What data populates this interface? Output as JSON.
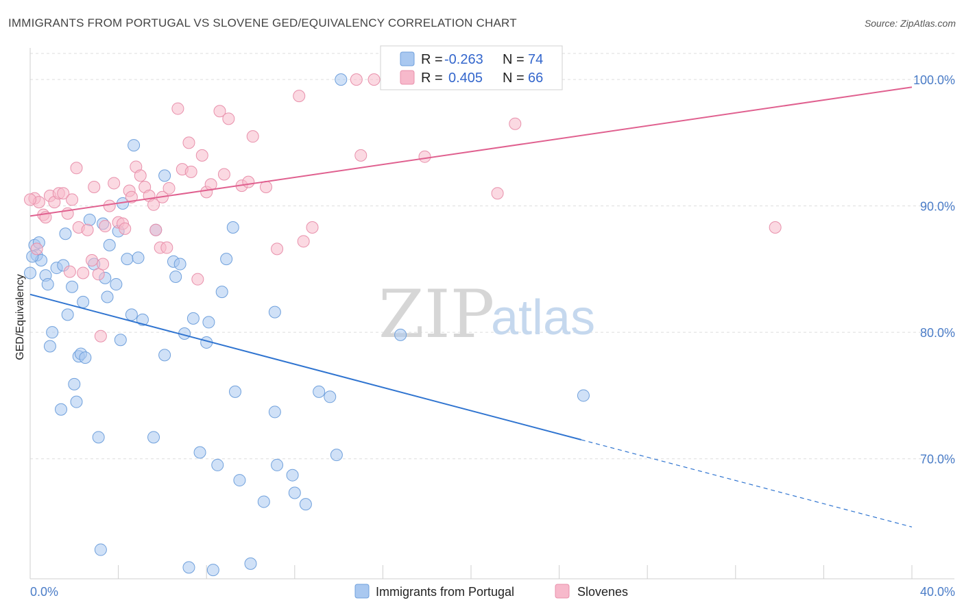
{
  "title": "IMMIGRANTS FROM PORTUGAL VS SLOVENE GED/EQUIVALENCY CORRELATION CHART",
  "source": "Source: ZipAtlas.com",
  "watermark": {
    "zip": "ZIP",
    "atlas": "atlas"
  },
  "colors": {
    "blue_fill": "#a9c8f0",
    "blue_stroke": "#6fa0dc",
    "blue_line": "#2f74d0",
    "pink_fill": "#f7b9cb",
    "pink_stroke": "#e890ab",
    "pink_line": "#e0608f",
    "tick_text": "#4a7cc7",
    "grid": "#dddddd"
  },
  "legend": {
    "r_label": "R =",
    "n_label": "N =",
    "rows": [
      {
        "r": "-0.263",
        "n": "74"
      },
      {
        "r": "0.405",
        "n": "66"
      }
    ]
  },
  "chart_data": {
    "type": "scatter",
    "title": "IMMIGRANTS FROM PORTUGAL VS SLOVENE GED/EQUIVALENCY CORRELATION CHART",
    "xlabel": "",
    "ylabel": "GED/Equivalency",
    "xlim": [
      0,
      40
    ],
    "ylim": [
      60.5,
      102.5
    ],
    "x_ticks": [
      0,
      40
    ],
    "x_tick_labels": [
      "0.0%",
      "40.0%"
    ],
    "y_ticks": [
      70,
      80,
      90,
      100
    ],
    "y_tick_labels": [
      "70.0%",
      "80.0%",
      "90.0%",
      "100.0%"
    ],
    "grid": true,
    "legend_position": "top-center",
    "series": [
      {
        "name": "Immigrants from Portugal",
        "color": "#a9c8f0",
        "points": [
          [
            0.0,
            84.7
          ],
          [
            0.2,
            86.9
          ],
          [
            0.3,
            86.1
          ],
          [
            0.4,
            87.1
          ],
          [
            0.5,
            85.7
          ],
          [
            0.7,
            84.5
          ],
          [
            0.8,
            83.8
          ],
          [
            0.9,
            78.9
          ],
          [
            1.0,
            80.0
          ],
          [
            1.2,
            85.1
          ],
          [
            1.4,
            73.9
          ],
          [
            1.5,
            85.3
          ],
          [
            1.6,
            87.8
          ],
          [
            1.7,
            81.4
          ],
          [
            1.9,
            83.6
          ],
          [
            2.0,
            75.9
          ],
          [
            2.1,
            74.5
          ],
          [
            2.2,
            78.1
          ],
          [
            2.3,
            78.3
          ],
          [
            2.4,
            82.4
          ],
          [
            2.5,
            78.0
          ],
          [
            2.7,
            88.9
          ],
          [
            2.9,
            85.4
          ],
          [
            3.1,
            71.7
          ],
          [
            3.2,
            62.8
          ],
          [
            3.3,
            88.6
          ],
          [
            3.4,
            84.3
          ],
          [
            3.5,
            82.8
          ],
          [
            3.6,
            86.9
          ],
          [
            3.9,
            83.8
          ],
          [
            4.0,
            88.0
          ],
          [
            4.1,
            79.4
          ],
          [
            4.2,
            90.2
          ],
          [
            4.4,
            85.8
          ],
          [
            4.6,
            81.4
          ],
          [
            4.7,
            94.8
          ],
          [
            4.9,
            85.9
          ],
          [
            5.1,
            81.0
          ],
          [
            5.6,
            71.7
          ],
          [
            5.7,
            88.1
          ],
          [
            6.1,
            78.2
          ],
          [
            6.1,
            92.4
          ],
          [
            6.5,
            85.6
          ],
          [
            6.6,
            84.4
          ],
          [
            6.8,
            85.4
          ],
          [
            7.0,
            79.9
          ],
          [
            7.2,
            61.4
          ],
          [
            7.4,
            81.1
          ],
          [
            7.7,
            70.5
          ],
          [
            8.0,
            79.2
          ],
          [
            8.1,
            80.8
          ],
          [
            8.3,
            61.2
          ],
          [
            8.5,
            69.5
          ],
          [
            8.7,
            83.2
          ],
          [
            8.9,
            85.8
          ],
          [
            9.2,
            88.3
          ],
          [
            9.3,
            75.3
          ],
          [
            9.5,
            68.3
          ],
          [
            10.0,
            61.7
          ],
          [
            10.6,
            66.6
          ],
          [
            11.1,
            73.7
          ],
          [
            11.1,
            81.6
          ],
          [
            11.2,
            69.5
          ],
          [
            11.9,
            68.7
          ],
          [
            12.0,
            67.3
          ],
          [
            12.5,
            66.4
          ],
          [
            13.1,
            75.3
          ],
          [
            13.6,
            74.9
          ],
          [
            13.9,
            70.3
          ],
          [
            14.1,
            100.0
          ],
          [
            16.8,
            79.8
          ],
          [
            18.0,
            100.0
          ],
          [
            25.1,
            75.0
          ],
          [
            0.1,
            86.0
          ]
        ]
      },
      {
        "name": "Slovenes",
        "color": "#f7b9cb",
        "points": [
          [
            0.2,
            90.6
          ],
          [
            0.3,
            86.6
          ],
          [
            0.4,
            90.3
          ],
          [
            0.6,
            89.3
          ],
          [
            0.7,
            89.1
          ],
          [
            0.9,
            90.8
          ],
          [
            1.1,
            90.3
          ],
          [
            1.3,
            91.0
          ],
          [
            1.5,
            91.0
          ],
          [
            1.7,
            89.4
          ],
          [
            1.9,
            90.5
          ],
          [
            2.1,
            93.0
          ],
          [
            2.2,
            88.3
          ],
          [
            2.4,
            84.7
          ],
          [
            2.6,
            88.1
          ],
          [
            2.8,
            85.7
          ],
          [
            2.9,
            91.5
          ],
          [
            3.1,
            84.6
          ],
          [
            3.2,
            79.7
          ],
          [
            3.4,
            88.4
          ],
          [
            3.6,
            90.0
          ],
          [
            3.8,
            91.8
          ],
          [
            4.0,
            88.7
          ],
          [
            4.2,
            88.6
          ],
          [
            4.3,
            88.2
          ],
          [
            4.5,
            91.2
          ],
          [
            4.6,
            90.7
          ],
          [
            4.8,
            93.1
          ],
          [
            5.0,
            92.4
          ],
          [
            5.2,
            91.5
          ],
          [
            5.4,
            90.8
          ],
          [
            5.6,
            90.1
          ],
          [
            5.7,
            88.1
          ],
          [
            5.9,
            86.7
          ],
          [
            6.0,
            90.7
          ],
          [
            6.2,
            86.7
          ],
          [
            6.3,
            91.4
          ],
          [
            6.7,
            97.7
          ],
          [
            6.9,
            92.9
          ],
          [
            7.2,
            95.0
          ],
          [
            7.3,
            92.7
          ],
          [
            7.6,
            84.2
          ],
          [
            7.8,
            94.0
          ],
          [
            8.0,
            91.1
          ],
          [
            8.2,
            91.7
          ],
          [
            8.6,
            97.5
          ],
          [
            8.8,
            92.5
          ],
          [
            9.0,
            96.9
          ],
          [
            9.6,
            91.6
          ],
          [
            9.9,
            91.9
          ],
          [
            10.1,
            95.5
          ],
          [
            10.7,
            91.5
          ],
          [
            11.2,
            86.6
          ],
          [
            12.2,
            98.7
          ],
          [
            12.4,
            87.2
          ],
          [
            12.8,
            88.3
          ],
          [
            14.8,
            100.0
          ],
          [
            15.0,
            94.0
          ],
          [
            15.6,
            100.0
          ],
          [
            17.9,
            93.9
          ],
          [
            21.2,
            91.0
          ],
          [
            22.0,
            96.5
          ],
          [
            33.8,
            88.3
          ],
          [
            3.3,
            85.4
          ],
          [
            1.8,
            84.8
          ],
          [
            0.0,
            90.5
          ]
        ]
      }
    ],
    "trend_lines": [
      {
        "series": "Immigrants from Portugal",
        "x_start": 0,
        "y_start": 83.0,
        "x_solid_end": 25.0,
        "x_end": 40,
        "y_end": 64.6
      },
      {
        "series": "Slovenes",
        "x_start": 0,
        "y_start": 89.2,
        "x_end": 40,
        "y_end": 99.4
      }
    ]
  }
}
